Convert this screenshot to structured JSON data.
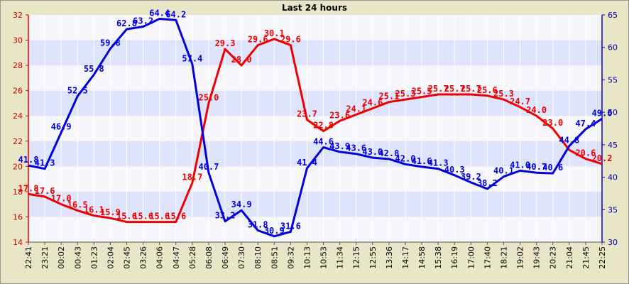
{
  "chart_data": {
    "type": "line",
    "title": "Last 24 hours",
    "x": [
      "22:41",
      "23:21",
      "00:02",
      "00:43",
      "01:23",
      "02:04",
      "02:45",
      "03:26",
      "04:06",
      "04:47",
      "05:28",
      "06:08",
      "06:49",
      "07:30",
      "08:10",
      "08:51",
      "09:32",
      "10:13",
      "10:53",
      "11:34",
      "12:15",
      "12:55",
      "13:36",
      "14:17",
      "14:58",
      "15:38",
      "16:19",
      "17:00",
      "17:40",
      "18:21",
      "19:02",
      "19:43",
      "20:23",
      "21:04",
      "21:45",
      "22:25"
    ],
    "y_left_range": [
      14,
      32
    ],
    "y_left_ticks": [
      "14",
      "16",
      "18",
      "20",
      "22",
      "24",
      "26",
      "28",
      "30",
      "32"
    ],
    "y_right_range": [
      30,
      65
    ],
    "y_right_ticks": [
      "30",
      "35",
      "40",
      "45",
      "50",
      "55",
      "60",
      "65"
    ],
    "grid": true,
    "series": [
      {
        "axis": "left",
        "color": "#ee0000",
        "values": [
          17.8,
          17.6,
          17.0,
          16.5,
          16.1,
          15.9,
          15.6,
          15.6,
          15.6,
          15.6,
          18.7,
          25.0,
          29.3,
          28.0,
          29.6,
          30.1,
          29.6,
          23.7,
          22.8,
          23.6,
          24.1,
          24.6,
          25.1,
          25.3,
          25.5,
          25.7,
          25.7,
          25.7,
          25.6,
          25.3,
          24.7,
          24.0,
          23.0,
          21.3,
          20.6,
          20.2
        ],
        "labels": [
          "17.8",
          "17.6",
          "17.0",
          "16.5",
          "16.1",
          "15.9",
          "15.6",
          "15.6",
          "15.6",
          "15.6",
          "18.7",
          "25.0",
          "29.3",
          "28.0",
          "29.6",
          "30.1",
          "29.6",
          "23.7",
          "22.8",
          "23.6",
          "24.1",
          "24.6",
          "25.1",
          "25.3",
          "25.5",
          "25.7",
          "25.7",
          "25.7",
          "25.6",
          "25.3",
          "24.7",
          "24.0",
          "23.0",
          "",
          "20.6",
          "20.2"
        ]
      },
      {
        "axis": "right",
        "color": "#0000dd",
        "values": [
          41.8,
          41.3,
          46.9,
          52.5,
          55.8,
          59.8,
          62.8,
          63.2,
          64.4,
          64.2,
          57.4,
          40.7,
          33.2,
          34.9,
          31.8,
          30.9,
          31.6,
          41.4,
          44.6,
          43.9,
          43.6,
          43.0,
          42.8,
          42.0,
          41.6,
          41.3,
          40.3,
          39.2,
          38.2,
          40.1,
          41.0,
          40.7,
          40.6,
          44.8,
          47.4,
          49.0
        ],
        "labels": [
          "41.8",
          "41.3",
          "46.9",
          "52.5",
          "55.8",
          "59.8",
          "62.8",
          "63.2",
          "64.4",
          "64.2",
          "57.4",
          "40.7",
          "33.2",
          "34.9",
          "31.8",
          "30.9",
          "31.6",
          "41.4",
          "44.6",
          "43.9",
          "43.6",
          "43.0",
          "42.8",
          "42.0",
          "41.6",
          "41.3",
          "40.3",
          "39.2",
          "38.2",
          "40.1",
          "41.0",
          "40.7",
          "40.6",
          "44.8",
          "47.4",
          "49.0"
        ]
      }
    ]
  }
}
